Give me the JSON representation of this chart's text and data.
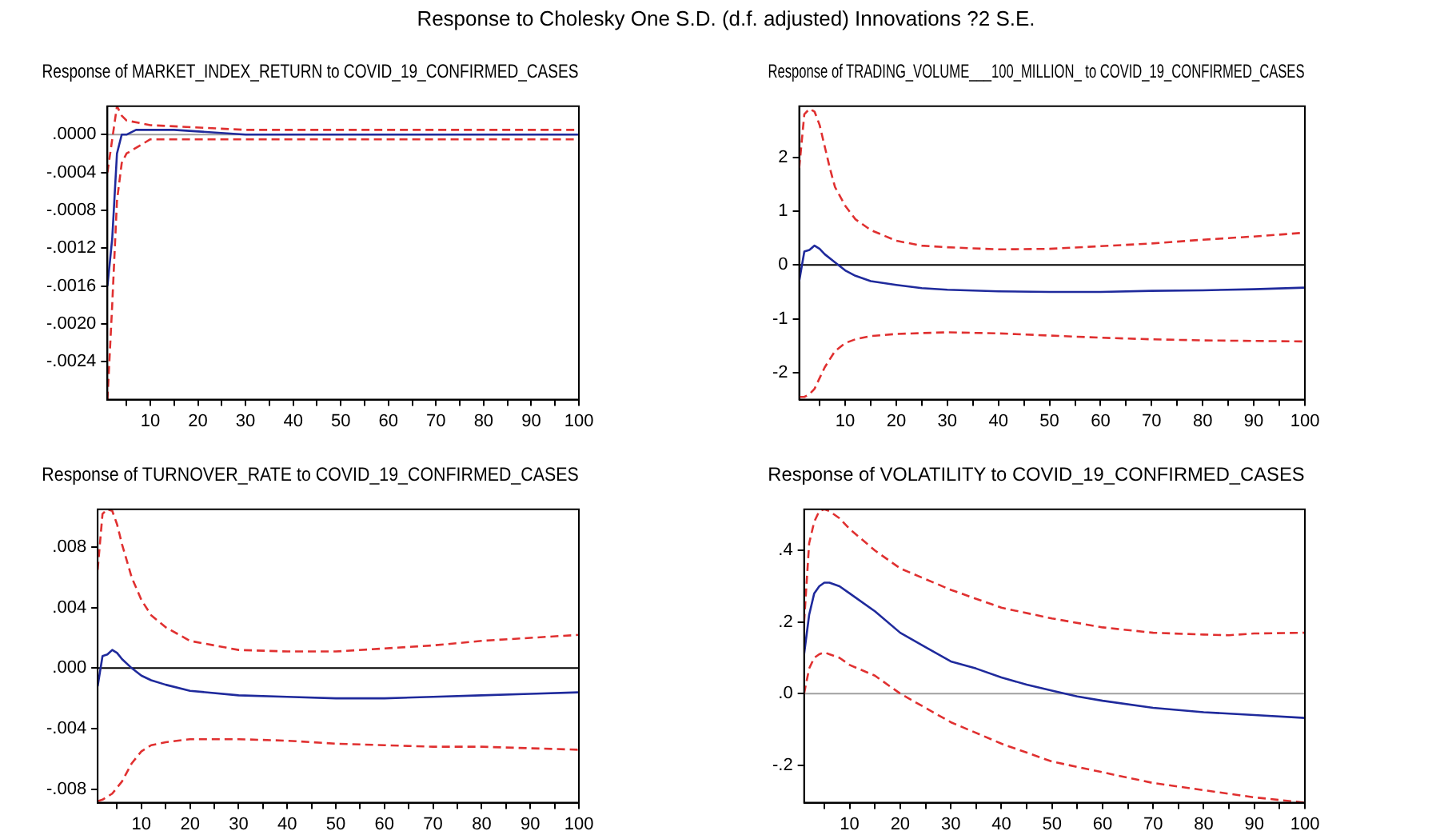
{
  "chart_data": [
    {
      "type": "line",
      "title": "Response of MARKET_INDEX_RETURN to COVID_19_CONFIRMED_CASES",
      "annotations": [
        "Response to Cholesky One S.D. (d.f. adjusted) Innovations ?2 S.E."
      ],
      "xlim": [
        1,
        100
      ],
      "xticks": [
        {
          "value": 5,
          "label": null
        },
        10,
        {
          "value": 15,
          "label": null
        },
        20,
        {
          "value": 25,
          "label": null
        },
        30,
        {
          "value": 35,
          "label": null
        },
        40,
        {
          "value": 45,
          "label": null
        },
        50,
        {
          "value": 55,
          "label": null
        },
        60,
        {
          "value": 65,
          "label": null
        },
        70,
        {
          "value": 75,
          "label": null
        },
        80,
        {
          "value": 85,
          "label": null
        },
        90,
        {
          "value": 95,
          "label": null
        },
        100
      ],
      "ylim": [
        -0.0028,
        0.0003
      ],
      "yticks": [
        {
          "value": 0,
          "label": ".0000"
        },
        {
          "value": -0.0004,
          "label": "-.0004"
        },
        {
          "value": -0.0008,
          "label": "-.0008"
        },
        {
          "value": -0.0012,
          "label": "-.0012"
        },
        {
          "value": -0.0016,
          "label": "-.0016"
        },
        {
          "value": -0.002,
          "label": "-.0020"
        },
        {
          "value": -0.0024,
          "label": "-.0024"
        }
      ],
      "grid": false,
      "legend": false,
      "marker": "none",
      "ref_lines": [
        {
          "axis": "y",
          "value": 0,
          "color": "#a0a0a0"
        }
      ],
      "series": [
        {
          "color": "#e03030",
          "line_style": "dashed",
          "x": [
            1,
            2,
            3,
            4,
            5,
            10,
            30,
            100
          ],
          "values": [
            -0.0004,
            -5e-05,
            0.0003,
            0.0002,
            0.00015,
            0.0001,
            5e-05,
            5e-05
          ]
        },
        {
          "color": "#1f2a9c",
          "line_style": "solid",
          "x": [
            1,
            2,
            3,
            4,
            5,
            7,
            9,
            15,
            30,
            100
          ],
          "values": [
            -0.0016,
            -0.0011,
            -0.0002,
            0,
            0,
            5e-05,
            5e-05,
            5e-05,
            0,
            0
          ]
        },
        {
          "color": "#e03030",
          "line_style": "dashed",
          "x": [
            1,
            2,
            3,
            4,
            5,
            10,
            30,
            100
          ],
          "values": [
            -0.0028,
            -0.0018,
            -0.0007,
            -0.0003,
            -0.0002,
            -5e-05,
            -5e-05,
            -5e-05
          ]
        }
      ]
    },
    {
      "type": "line",
      "title": "Response of TRADING_VOLUME___100_MILLION_ to COVID_19_CONFIRMED_CASES",
      "xlim": [
        1,
        100
      ],
      "xticks": [
        {
          "value": 5,
          "label": null
        },
        10,
        {
          "value": 15,
          "label": null
        },
        20,
        {
          "value": 25,
          "label": null
        },
        30,
        {
          "value": 35,
          "label": null
        },
        40,
        {
          "value": 45,
          "label": null
        },
        50,
        {
          "value": 55,
          "label": null
        },
        60,
        {
          "value": 65,
          "label": null
        },
        70,
        {
          "value": 75,
          "label": null
        },
        80,
        {
          "value": 85,
          "label": null
        },
        90,
        {
          "value": 95,
          "label": null
        },
        100
      ],
      "ylim": [
        -2.5,
        2.95
      ],
      "yticks": [
        -2,
        -1,
        0,
        1,
        2
      ],
      "grid": false,
      "legend": false,
      "marker": "none",
      "ref_lines": [
        {
          "axis": "y",
          "value": 0,
          "color": "#000000"
        }
      ],
      "series": [
        {
          "color": "#e03030",
          "line_style": "dashed",
          "x": [
            1,
            2,
            3,
            4,
            5,
            6,
            7,
            8,
            10,
            12,
            15,
            20,
            25,
            30,
            40,
            50,
            60,
            70,
            80,
            90,
            100
          ],
          "values": [
            1.8,
            2.8,
            2.9,
            2.85,
            2.6,
            2.2,
            1.8,
            1.45,
            1.1,
            0.85,
            0.65,
            0.45,
            0.36,
            0.33,
            0.29,
            0.3,
            0.35,
            0.4,
            0.47,
            0.53,
            0.6
          ]
        },
        {
          "color": "#1f2a9c",
          "line_style": "solid",
          "x": [
            1,
            2,
            3,
            4,
            5,
            6,
            8,
            10,
            12,
            15,
            20,
            25,
            30,
            40,
            50,
            60,
            70,
            80,
            90,
            100
          ],
          "values": [
            -0.3,
            0.25,
            0.28,
            0.36,
            0.3,
            0.2,
            0.05,
            -0.1,
            -0.2,
            -0.3,
            -0.37,
            -0.43,
            -0.46,
            -0.49,
            -0.5,
            -0.5,
            -0.48,
            -0.47,
            -0.45,
            -0.42
          ]
        },
        {
          "color": "#e03030",
          "line_style": "dashed",
          "x": [
            1,
            2,
            3,
            4,
            5,
            6,
            8,
            10,
            12,
            15,
            20,
            30,
            40,
            50,
            60,
            70,
            80,
            90,
            100
          ],
          "values": [
            -2.45,
            -2.45,
            -2.4,
            -2.3,
            -2.1,
            -1.9,
            -1.6,
            -1.45,
            -1.38,
            -1.32,
            -1.28,
            -1.25,
            -1.27,
            -1.31,
            -1.35,
            -1.38,
            -1.4,
            -1.41,
            -1.42
          ]
        }
      ]
    },
    {
      "type": "line",
      "title": "Response of TURNOVER_RATE to COVID_19_CONFIRMED_CASES",
      "xlim": [
        1,
        100
      ],
      "xticks": [
        {
          "value": 5,
          "label": null
        },
        10,
        {
          "value": 15,
          "label": null
        },
        20,
        {
          "value": 25,
          "label": null
        },
        30,
        {
          "value": 35,
          "label": null
        },
        40,
        {
          "value": 45,
          "label": null
        },
        50,
        {
          "value": 55,
          "label": null
        },
        60,
        {
          "value": 65,
          "label": null
        },
        70,
        {
          "value": 75,
          "label": null
        },
        80,
        {
          "value": 85,
          "label": null
        },
        90,
        {
          "value": 95,
          "label": null
        },
        100
      ],
      "ylim": [
        -0.0089,
        0.0105
      ],
      "yticks": [
        {
          "value": 0.008,
          "label": ".008"
        },
        {
          "value": 0.004,
          "label": ".004"
        },
        {
          "value": 0,
          "label": ".000"
        },
        {
          "value": -0.004,
          "label": "-.004"
        },
        {
          "value": -0.008,
          "label": "-.008"
        }
      ],
      "grid": false,
      "legend": false,
      "marker": "none",
      "ref_lines": [
        {
          "axis": "y",
          "value": 0,
          "color": "#000000"
        }
      ],
      "series": [
        {
          "color": "#e03030",
          "line_style": "dashed",
          "x": [
            1,
            2,
            3,
            4,
            5,
            6,
            8,
            10,
            12,
            15,
            20,
            30,
            40,
            50,
            60,
            70,
            80,
            90,
            100
          ],
          "values": [
            0.0065,
            0.0102,
            0.0105,
            0.0104,
            0.0095,
            0.0082,
            0.006,
            0.0045,
            0.0035,
            0.0027,
            0.0018,
            0.0012,
            0.0011,
            0.0011,
            0.0013,
            0.0015,
            0.0018,
            0.002,
            0.0022
          ]
        },
        {
          "color": "#1f2a9c",
          "line_style": "solid",
          "x": [
            1,
            2,
            3,
            4,
            5,
            6,
            8,
            10,
            12,
            15,
            20,
            30,
            40,
            50,
            60,
            70,
            80,
            90,
            100
          ],
          "values": [
            -0.0012,
            0.0008,
            0.0009,
            0.0012,
            0.001,
            0.0006,
            0,
            -0.0005,
            -0.0008,
            -0.0011,
            -0.0015,
            -0.0018,
            -0.0019,
            -0.002,
            -0.002,
            -0.0019,
            -0.0018,
            -0.0017,
            -0.0016
          ]
        },
        {
          "color": "#e03030",
          "line_style": "dashed",
          "x": [
            1,
            2,
            3,
            4,
            6,
            8,
            10,
            12,
            15,
            20,
            30,
            40,
            50,
            60,
            70,
            80,
            90,
            100
          ],
          "values": [
            -0.0088,
            -0.0087,
            -0.0085,
            -0.0083,
            -0.0075,
            -0.0063,
            -0.0055,
            -0.0051,
            -0.0049,
            -0.0047,
            -0.0047,
            -0.0048,
            -0.005,
            -0.0051,
            -0.0052,
            -0.0052,
            -0.0053,
            -0.0054
          ]
        }
      ]
    },
    {
      "type": "line",
      "title": "Response of VOLATILITY to COVID_19_CONFIRMED_CASES",
      "xlim": [
        1,
        100
      ],
      "xticks": [
        {
          "value": 5,
          "label": null
        },
        10,
        {
          "value": 15,
          "label": null
        },
        20,
        {
          "value": 25,
          "label": null
        },
        30,
        {
          "value": 35,
          "label": null
        },
        40,
        {
          "value": 45,
          "label": null
        },
        50,
        {
          "value": 55,
          "label": null
        },
        60,
        {
          "value": 65,
          "label": null
        },
        70,
        {
          "value": 75,
          "label": null
        },
        80,
        {
          "value": 85,
          "label": null
        },
        90,
        {
          "value": 95,
          "label": null
        },
        100
      ],
      "ylim": [
        -0.305,
        0.515
      ],
      "yticks": [
        {
          "value": 0.4,
          "label": ".4"
        },
        {
          "value": 0.2,
          "label": ".2"
        },
        {
          "value": 0,
          "label": ".0"
        },
        {
          "value": -0.2,
          "label": "-.2"
        }
      ],
      "grid": false,
      "legend": false,
      "marker": "none",
      "ref_lines": [
        {
          "axis": "y",
          "value": 0,
          "color": "#a0a0a0"
        }
      ],
      "series": [
        {
          "color": "#e03030",
          "line_style": "dashed",
          "x": [
            1,
            2,
            3,
            4,
            5,
            6,
            8,
            10,
            15,
            20,
            30,
            40,
            50,
            60,
            70,
            80,
            85,
            90,
            100
          ],
          "values": [
            0.2,
            0.42,
            0.48,
            0.51,
            0.515,
            0.51,
            0.49,
            0.46,
            0.4,
            0.35,
            0.29,
            0.24,
            0.21,
            0.185,
            0.17,
            0.165,
            0.163,
            0.168,
            0.17
          ]
        },
        {
          "color": "#1f2a9c",
          "line_style": "solid",
          "x": [
            1,
            2,
            3,
            4,
            5,
            6,
            8,
            10,
            15,
            20,
            25,
            30,
            35,
            40,
            45,
            50,
            55,
            60,
            70,
            80,
            90,
            100
          ],
          "values": [
            0.11,
            0.22,
            0.28,
            0.3,
            0.31,
            0.31,
            0.3,
            0.28,
            0.23,
            0.17,
            0.13,
            0.09,
            0.07,
            0.045,
            0.025,
            0.008,
            -0.008,
            -0.02,
            -0.04,
            -0.052,
            -0.06,
            -0.068
          ]
        },
        {
          "color": "#e03030",
          "line_style": "dashed",
          "x": [
            1,
            2,
            3,
            4,
            5,
            6,
            8,
            10,
            15,
            20,
            25,
            30,
            40,
            50,
            60,
            70,
            80,
            90,
            100
          ],
          "values": [
            0,
            0.07,
            0.1,
            0.11,
            0.115,
            0.11,
            0.1,
            0.08,
            0.05,
            0,
            -0.04,
            -0.08,
            -0.14,
            -0.19,
            -0.22,
            -0.25,
            -0.27,
            -0.29,
            -0.305
          ]
        }
      ]
    }
  ]
}
